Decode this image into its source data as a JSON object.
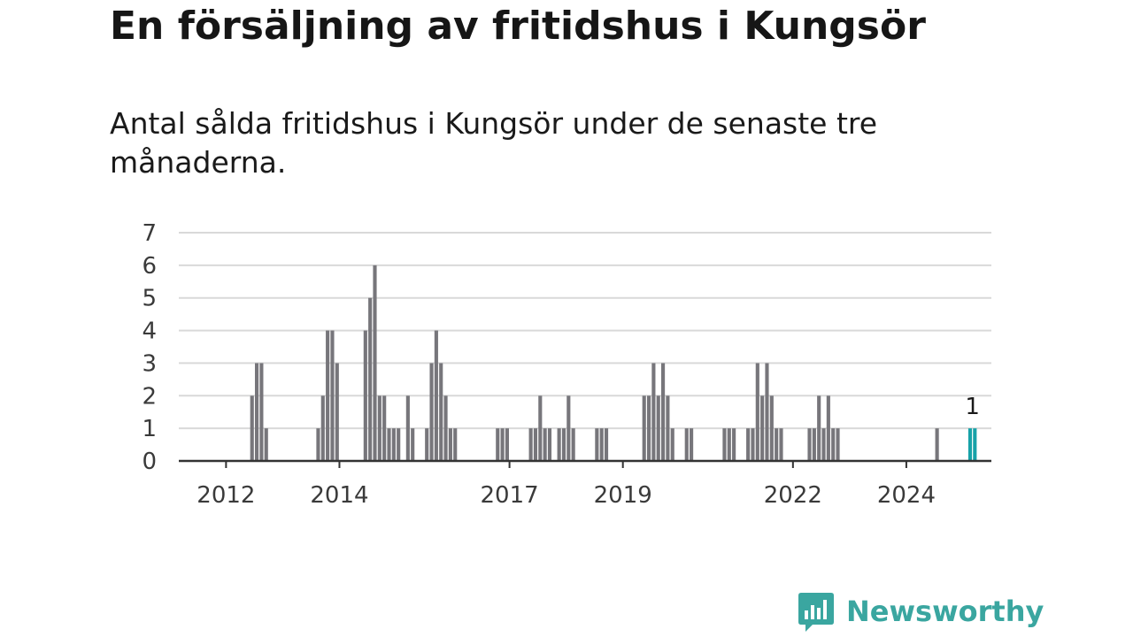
{
  "header": {
    "title": "En försäljning av fritidshus i Kungsör",
    "subtitle": "Antal sålda fritidshus i Kungsör under de senaste tre månaderna."
  },
  "brand": {
    "name": "Newsworthy",
    "icon": "newsworthy-logo-icon",
    "color": "#3aa6a0"
  },
  "colors": {
    "bar": "#77767b",
    "highlight": "#17a2a8",
    "grid": "#d9d9d9",
    "axis": "#333333"
  },
  "chart_data": {
    "type": "bar",
    "title": "En försäljning av fritidshus i Kungsör",
    "subtitle": "Antal sålda fritidshus i Kungsör under de senaste tre månaderna.",
    "xlabel": "",
    "ylabel": "",
    "ylim": [
      0,
      7
    ],
    "y_ticks": [
      0,
      1,
      2,
      3,
      4,
      5,
      6,
      7
    ],
    "x_ticks": [
      "2012",
      "2014",
      "2017",
      "2019",
      "2022",
      "2024"
    ],
    "x_start": "2011-03",
    "x_end": "2025-06",
    "grid": true,
    "legend": "none",
    "highlight_label": "1",
    "categories": [
      "2012-06",
      "2012-07",
      "2012-08",
      "2012-09",
      "2013-08",
      "2013-09",
      "2013-10",
      "2013-11",
      "2013-12",
      "2014-06",
      "2014-07",
      "2014-08",
      "2014-09",
      "2014-10",
      "2014-11",
      "2014-12",
      "2015-01",
      "2015-03",
      "2015-04",
      "2015-07",
      "2015-08",
      "2015-09",
      "2015-10",
      "2015-11",
      "2015-12",
      "2016-01",
      "2016-10",
      "2016-11",
      "2016-12",
      "2017-05",
      "2017-06",
      "2017-07",
      "2017-08",
      "2017-09",
      "2017-11",
      "2017-12",
      "2018-01",
      "2018-02",
      "2018-07",
      "2018-08",
      "2018-09",
      "2019-05",
      "2019-06",
      "2019-07",
      "2019-08",
      "2019-09",
      "2019-10",
      "2019-11",
      "2020-02",
      "2020-03",
      "2020-10",
      "2020-11",
      "2020-12",
      "2021-03",
      "2021-04",
      "2021-05",
      "2021-06",
      "2021-07",
      "2021-08",
      "2021-09",
      "2021-10",
      "2022-04",
      "2022-05",
      "2022-06",
      "2022-07",
      "2022-08",
      "2022-09",
      "2022-10",
      "2024-07",
      "2025-02",
      "2025-03"
    ],
    "values": [
      2,
      3,
      3,
      1,
      1,
      2,
      4,
      4,
      3,
      4,
      5,
      6,
      2,
      2,
      1,
      1,
      1,
      2,
      1,
      1,
      3,
      4,
      3,
      2,
      1,
      1,
      1,
      1,
      1,
      1,
      1,
      2,
      1,
      1,
      1,
      1,
      2,
      1,
      1,
      1,
      1,
      2,
      2,
      3,
      2,
      3,
      2,
      1,
      1,
      1,
      1,
      1,
      1,
      1,
      1,
      3,
      2,
      3,
      2,
      1,
      1,
      1,
      1,
      2,
      1,
      2,
      1,
      1,
      1,
      1,
      1
    ],
    "highlight": [
      "2025-02",
      "2025-03"
    ]
  }
}
